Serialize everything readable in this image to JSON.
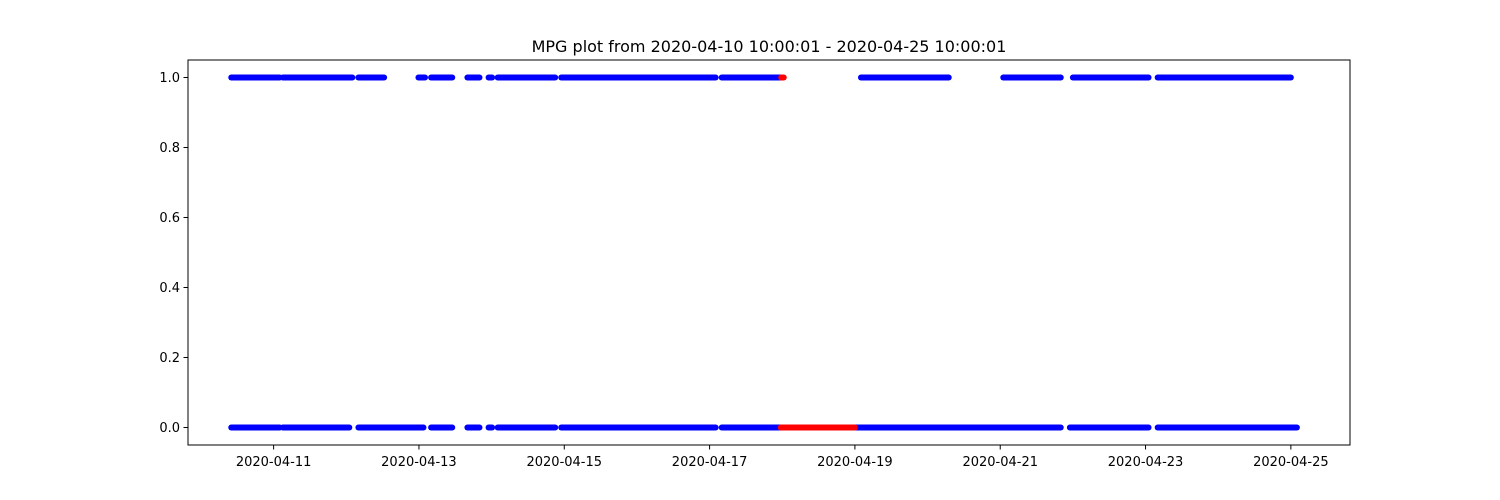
{
  "chart_data": {
    "type": "scatter",
    "title": "MPG plot from 2020-04-10 10:00:01 - 2020-04-25 10:00:01",
    "xlabel": "",
    "ylabel": "",
    "x_tick_labels": [
      "2020-04-11",
      "2020-04-13",
      "2020-04-15",
      "2020-04-17",
      "2020-04-19",
      "2020-04-21",
      "2020-04-23",
      "2020-04-25"
    ],
    "y_tick_labels": [
      "0.0",
      "0.2",
      "0.4",
      "0.6",
      "0.8",
      "1.0"
    ],
    "y_ticks": [
      0.0,
      0.2,
      0.4,
      0.6,
      0.8,
      1.0
    ],
    "xlim": [
      "2020-04-09 19:43",
      "2020-04-25 19:32"
    ],
    "ylim": [
      -0.05,
      1.05
    ],
    "grid": false,
    "legend": "none",
    "series": [
      {
        "color": "#0000ff",
        "segments": [
          {
            "y": 1,
            "x_start": "2020-04-10 10:00",
            "x_end": "2020-04-11 02:00"
          },
          {
            "y": 1,
            "x_start": "2020-04-11 03:00",
            "x_end": "2020-04-12 02:00"
          },
          {
            "y": 1,
            "x_start": "2020-04-12 04:00",
            "x_end": "2020-04-12 12:30"
          },
          {
            "y": 1,
            "x_start": "2020-04-12 23:50",
            "x_end": "2020-04-13 02:00"
          },
          {
            "y": 1,
            "x_start": "2020-04-13 04:00",
            "x_end": "2020-04-13 11:00"
          },
          {
            "y": 1,
            "x_start": "2020-04-13 16:00",
            "x_end": "2020-04-13 20:00"
          },
          {
            "y": 1,
            "x_start": "2020-04-13 23:00",
            "x_end": "2020-04-14 00:10"
          },
          {
            "y": 1,
            "x_start": "2020-04-14 02:00",
            "x_end": "2020-04-14 21:00"
          },
          {
            "y": 1,
            "x_start": "2020-04-14 23:00",
            "x_end": "2020-04-17 02:00"
          },
          {
            "y": 1,
            "x_start": "2020-04-17 04:00",
            "x_end": "2020-04-17 23:40"
          },
          {
            "y": 1,
            "x_start": "2020-04-19 02:00",
            "x_end": "2020-04-20 07:00"
          },
          {
            "y": 1,
            "x_start": "2020-04-21 01:00",
            "x_end": "2020-04-21 20:00"
          },
          {
            "y": 1,
            "x_start": "2020-04-22 00:00",
            "x_end": "2020-04-23 01:00"
          },
          {
            "y": 1,
            "x_start": "2020-04-23 04:00",
            "x_end": "2020-04-25 00:00"
          },
          {
            "y": 0,
            "x_start": "2020-04-10 10:00",
            "x_end": "2020-04-11 02:00"
          },
          {
            "y": 0,
            "x_start": "2020-04-11 03:00",
            "x_end": "2020-04-12 01:00"
          },
          {
            "y": 0,
            "x_start": "2020-04-12 04:00",
            "x_end": "2020-04-13 01:30"
          },
          {
            "y": 0,
            "x_start": "2020-04-13 04:00",
            "x_end": "2020-04-13 11:00"
          },
          {
            "y": 0,
            "x_start": "2020-04-13 16:00",
            "x_end": "2020-04-13 20:00"
          },
          {
            "y": 0,
            "x_start": "2020-04-13 23:00",
            "x_end": "2020-04-14 00:10"
          },
          {
            "y": 0,
            "x_start": "2020-04-14 02:00",
            "x_end": "2020-04-14 21:00"
          },
          {
            "y": 0,
            "x_start": "2020-04-14 23:00",
            "x_end": "2020-04-17 02:00"
          },
          {
            "y": 0,
            "x_start": "2020-04-17 04:00",
            "x_end": "2020-04-17 23:30"
          },
          {
            "y": 0,
            "x_start": "2020-04-19 00:00",
            "x_end": "2020-04-21 20:00"
          },
          {
            "y": 0,
            "x_start": "2020-04-21 23:00",
            "x_end": "2020-04-23 01:00"
          },
          {
            "y": 0,
            "x_start": "2020-04-23 04:00",
            "x_end": "2020-04-25 02:00"
          }
        ]
      },
      {
        "color": "#ff0000",
        "segments": [
          {
            "y": 1,
            "x_start": "2020-04-17 23:40",
            "x_end": "2020-04-18 00:30"
          },
          {
            "y": 0,
            "x_start": "2020-04-17 23:30",
            "x_end": "2020-04-19 00:00"
          }
        ]
      }
    ]
  }
}
